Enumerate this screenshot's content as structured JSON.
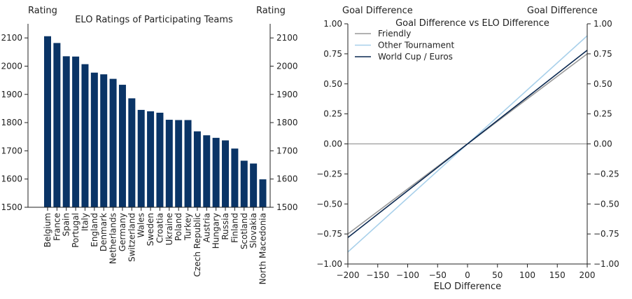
{
  "chart_data": [
    {
      "type": "bar",
      "title": "ELO Ratings of Participating Teams",
      "ylabel_left": "Rating",
      "ylabel_right": "Rating",
      "ylim": [
        1500,
        2150
      ],
      "yticks": [
        1500,
        1600,
        1700,
        1800,
        1900,
        2000,
        2100
      ],
      "categories": [
        "Belgium",
        "France",
        "Spain",
        "Portugal",
        "Italy",
        "England",
        "Denmark",
        "Netherlands",
        "Germany",
        "Switzerland",
        "Wales",
        "Sweden",
        "Croatia",
        "Ukraine",
        "Poland",
        "Turkey",
        "Czech Republic",
        "Austria",
        "Hungary",
        "Russia",
        "Finland",
        "Scotland",
        "Slovakia",
        "North Macedonia"
      ],
      "values": [
        2106,
        2082,
        2035,
        2034,
        2007,
        1977,
        1971,
        1955,
        1934,
        1886,
        1845,
        1840,
        1835,
        1810,
        1809,
        1809,
        1769,
        1755,
        1746,
        1737,
        1708,
        1665,
        1655,
        1599
      ],
      "bar_color": "#0a3466",
      "grid": false
    },
    {
      "type": "line",
      "title": "Goal Difference vs ELO Difference",
      "xlabel": "ELO Difference",
      "ylabel_left": "Goal Difference",
      "ylabel_right": "Goal Difference",
      "xlim": [
        -200,
        200
      ],
      "ylim": [
        -1.0,
        1.0
      ],
      "xticks": [
        "−200",
        "−150",
        "−100",
        "−50",
        "0",
        "50",
        "100",
        "150",
        "200"
      ],
      "yticks": [
        "−1.00",
        "−0.75",
        "−0.50",
        "−0.25",
        "0.00",
        "0.25",
        "0.50",
        "0.75",
        "1.00"
      ],
      "zero_line": true,
      "legend_position": "top-left",
      "series": [
        {
          "name": "Friendly",
          "color": "#999999",
          "x": [
            -200,
            200
          ],
          "y": [
            -0.75,
            0.75
          ]
        },
        {
          "name": "Other Tournament",
          "color": "#a8d0ea",
          "x": [
            -200,
            200
          ],
          "y": [
            -0.9,
            0.9
          ]
        },
        {
          "name": "World Cup / Euros",
          "color": "#0a2850",
          "x": [
            -200,
            200
          ],
          "y": [
            -0.78,
            0.78
          ]
        }
      ]
    }
  ]
}
